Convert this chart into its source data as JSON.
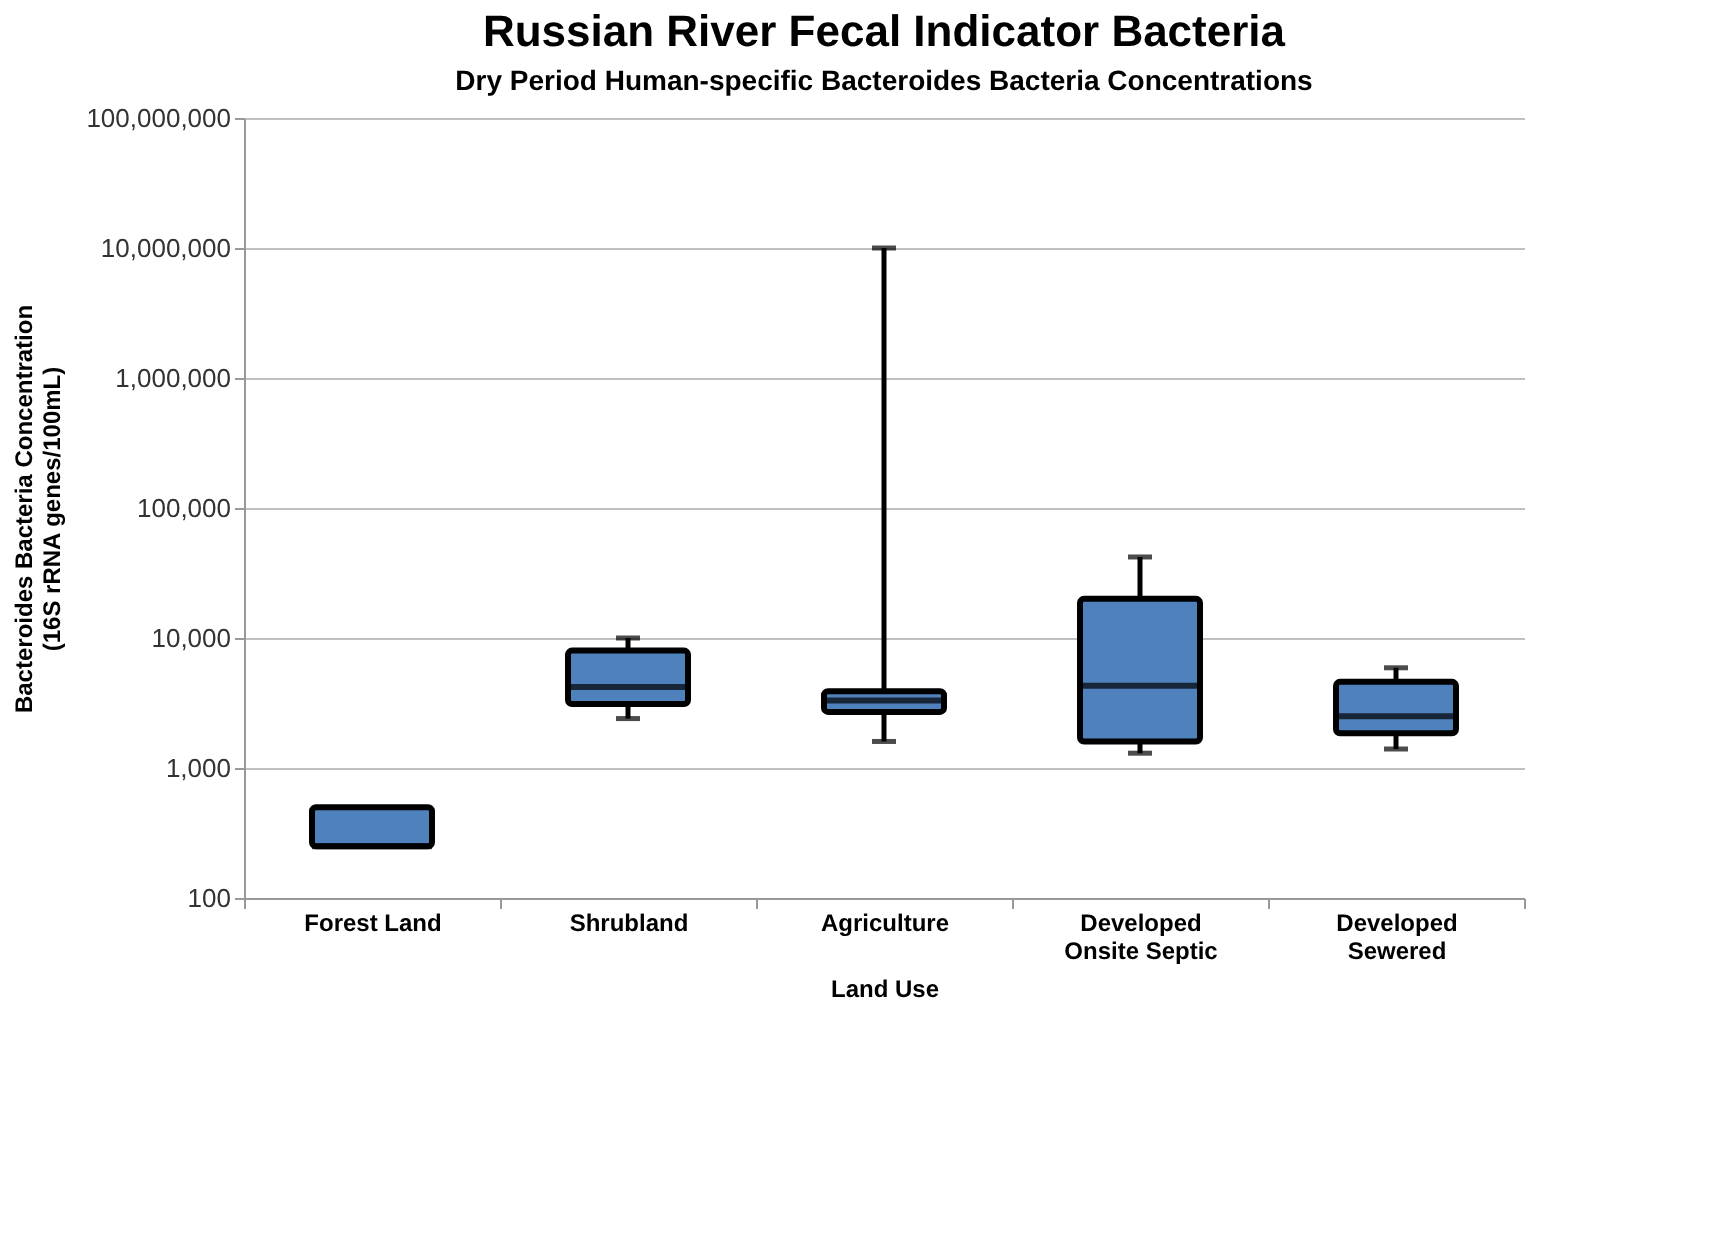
{
  "chart_data": {
    "type": "box",
    "title": "Russian River Fecal Indicator Bacteria",
    "subtitle": "Dry Period  Human-specific Bacteroides Bacteria Concentrations",
    "xlabel": "Land Use",
    "ylabel": "Bacteroides Bacteria Concentration\n(16S rRNA genes/100mL)",
    "categories": [
      "Forest Land",
      "Shrubland",
      "Agriculture",
      "Developed Onsite Septic",
      "Developed Sewered"
    ],
    "color": "#4f81bd",
    "boxes": [
      {
        "low": 250,
        "q1": 250,
        "median": 250,
        "q3": 500,
        "high": 500
      },
      {
        "low": 2400,
        "q1": 3100,
        "median": 4200,
        "q3": 8000,
        "high": 10000
      },
      {
        "low": 1600,
        "q1": 2700,
        "median": 3300,
        "q3": 3900,
        "high": 10000000
      },
      {
        "low": 1300,
        "q1": 1600,
        "median": 4300,
        "q3": 20000,
        "high": 42000
      },
      {
        "low": 1400,
        "q1": 1850,
        "median": 2500,
        "q3": 4600,
        "high": 5900
      }
    ],
    "log": true,
    "ylim": [
      100,
      100000000
    ],
    "yticks": [
      100,
      {
        "value": 1000,
        "label": "1,000"
      },
      {
        "value": 10000,
        "label": "10,000"
      },
      {
        "value": 100000,
        "label": "100,000"
      },
      {
        "value": 1000000,
        "label": "1,000,000"
      },
      {
        "value": 10000000,
        "label": "10,000,000"
      },
      {
        "value": 100000000,
        "label": "100,000,000"
      }
    ],
    "grid": "y"
  }
}
